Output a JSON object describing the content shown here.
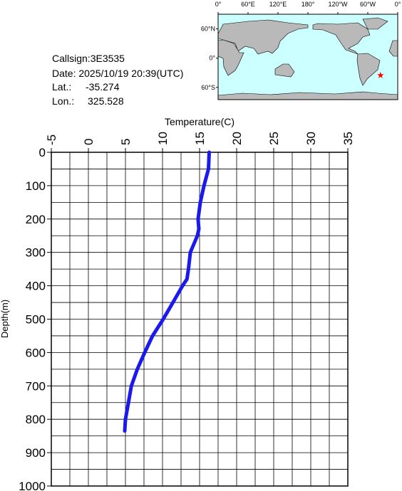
{
  "info": {
    "callsign": "Callsign:3E3535",
    "date": "Date:  2025/10/19 20:39(UTC)",
    "lat_label": "Lat.:",
    "lat": -35.274,
    "lon_label": "Lon.:",
    "lon": 325.528
  },
  "map": {
    "lonlim": [
      0,
      360
    ],
    "latlim": [
      -85,
      90
    ],
    "lonticks": [
      {
        "value": 0,
        "label": "0°"
      },
      {
        "value": 60,
        "label": "60°E"
      },
      {
        "value": 120,
        "label": "120°E"
      },
      {
        "value": 180,
        "label": "180°"
      },
      {
        "value": 240,
        "label": "120°W"
      },
      {
        "value": 300,
        "label": "60°W"
      },
      {
        "value": 360,
        "label": "0°"
      }
    ],
    "latticks": [
      {
        "value": 60,
        "label": "60°N"
      },
      {
        "value": 0,
        "label": "0°"
      },
      {
        "value": -60,
        "label": "60°S"
      }
    ],
    "marker_color": "#ff0000"
  },
  "chart_data": {
    "type": "line",
    "xlabel": "Temperature(C)",
    "ylabel": "Depth(m)",
    "y": [
      0,
      50,
      100,
      150,
      200,
      230,
      250,
      300,
      350,
      380,
      400,
      450,
      500,
      550,
      600,
      650,
      700,
      750,
      800,
      835
    ],
    "series": [
      {
        "name": "Temperature",
        "color": "#1a1aee",
        "values": [
          16.3,
          16.2,
          15.6,
          15.1,
          14.8,
          14.9,
          14.7,
          13.75,
          13.5,
          13.3,
          12.7,
          11.4,
          10.1,
          8.65,
          7.6,
          6.6,
          5.8,
          5.4,
          5.0,
          4.9
        ]
      }
    ],
    "xlim": [
      -5,
      35
    ],
    "xticks": [
      -5,
      0,
      5,
      10,
      15,
      20,
      25,
      30,
      35
    ],
    "ylim": [
      0,
      1000
    ],
    "yticks": [
      0,
      100,
      200,
      300,
      400,
      500,
      600,
      700,
      800,
      900,
      1000
    ],
    "xgrid": [
      -2.5,
      0,
      2.5,
      5,
      7.5,
      10,
      12.5,
      15,
      17.5,
      20,
      22.5,
      25,
      27.5,
      30,
      32.5
    ],
    "ygrid": [
      50,
      100,
      150,
      200,
      250,
      300,
      350,
      400,
      450,
      500,
      550,
      600,
      650,
      700,
      750,
      800,
      850,
      900,
      950
    ],
    "y_inverted": true,
    "grid": true
  }
}
